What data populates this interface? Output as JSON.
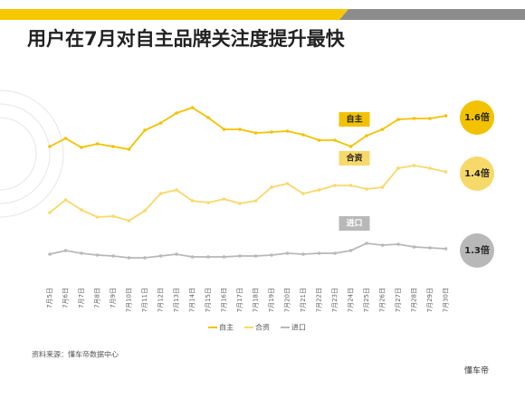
{
  "chart_data": {
    "type": "line",
    "title": "用户在7月对自主品牌关注度提升最快",
    "source": "资料来源：懂车帝数据中心",
    "brand": "懂车帝",
    "categories": [
      "7月5日",
      "7月6日",
      "7月7日",
      "7月8日",
      "7月9日",
      "7月10日",
      "7月11日",
      "7月12日",
      "7月13日",
      "7月14日",
      "7月15日",
      "7月16日",
      "7月17日",
      "7月18日",
      "7月19日",
      "7月20日",
      "7月21日",
      "7月22日",
      "7月23日",
      "7月24日",
      "7月25日",
      "7月26日",
      "7月27日",
      "7月28日",
      "7月29日",
      "7月30日"
    ],
    "ylim": [
      0,
      100
    ],
    "legend": "bottom",
    "series": [
      {
        "name": "自主",
        "color": "#f2c200",
        "end_label": "1.6倍",
        "values": [
          69,
          73.5,
          68.5,
          70.5,
          69,
          67.5,
          78,
          82,
          87.5,
          90.5,
          85,
          78.5,
          78.5,
          76.5,
          77,
          77.5,
          75.5,
          72.5,
          72.5,
          69,
          75,
          78.5,
          84,
          84.5,
          84.5,
          86
        ]
      },
      {
        "name": "合资",
        "color": "#f7d96a",
        "end_label": "1.4倍",
        "values": [
          32.5,
          39.5,
          34,
          30,
          30.5,
          28,
          33.5,
          43,
          45,
          39,
          38,
          40,
          37.5,
          39,
          46.5,
          48.5,
          43,
          45,
          47.5,
          47.5,
          45.5,
          46.5,
          57,
          58.5,
          57,
          55
        ]
      },
      {
        "name": "进口",
        "color": "#b8b8b8",
        "end_label": "1.3倍",
        "values": [
          9.5,
          11.5,
          10,
          9,
          8.5,
          7.5,
          7.5,
          8.5,
          9.5,
          8,
          8,
          8,
          8.5,
          8.5,
          9,
          10,
          9.5,
          10,
          10,
          11.5,
          15.5,
          14.5,
          15,
          13.5,
          13,
          12.5
        ]
      }
    ]
  }
}
